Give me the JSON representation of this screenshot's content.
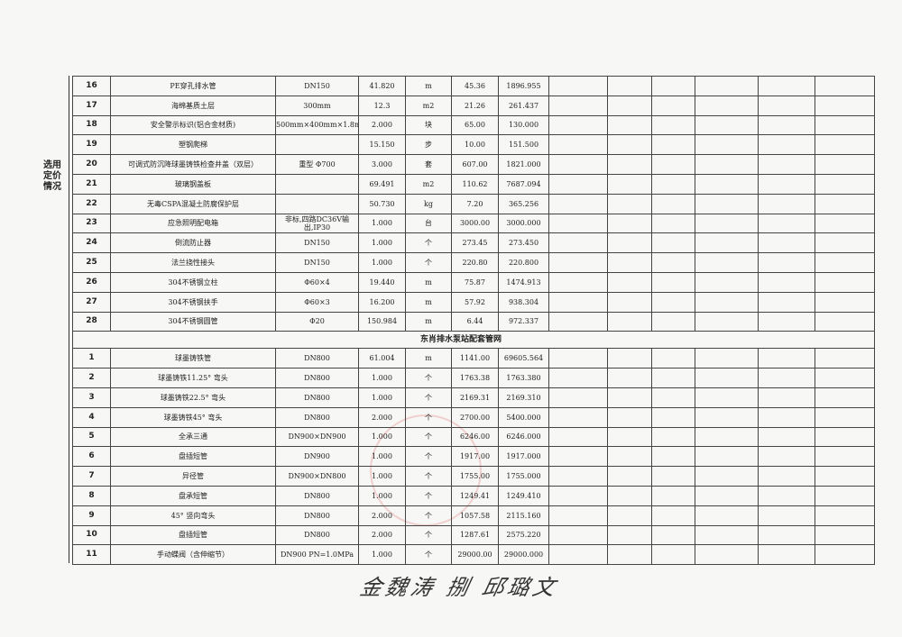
{
  "side_label": "选用定价情况",
  "rows_a": [
    [
      "16",
      "PE穿孔排水管",
      "DN150",
      "41.820",
      "m",
      "45.36",
      "1896.955"
    ],
    [
      "17",
      "海绵基质土层",
      "300mm",
      "12.3",
      "m2",
      "21.26",
      "261.437"
    ],
    [
      "18",
      "安全警示标识(铝合金材质)",
      "500mm×400mm×1.8mm",
      "2.000",
      "块",
      "65.00",
      "130.000"
    ],
    [
      "19",
      "塑钢爬梯",
      "",
      "15.150",
      "步",
      "10.00",
      "151.500"
    ],
    [
      "20",
      "可调式防沉降球墨铸铁检查井盖（双层）",
      "重型 Φ700",
      "3.000",
      "套",
      "607.00",
      "1821.000"
    ],
    [
      "21",
      "玻璃钢盖板",
      "",
      "69.491",
      "m2",
      "110.62",
      "7687.094"
    ],
    [
      "22",
      "无毒CSPA混凝土防腐保护层",
      "",
      "50.730",
      "kg",
      "7.20",
      "365.256"
    ],
    [
      "23",
      "应急照明配电箱",
      "非标,四路DC36V输出,IP30",
      "1.000",
      "台",
      "3000.00",
      "3000.000"
    ],
    [
      "24",
      "倒流防止器",
      "DN150",
      "1.000",
      "个",
      "273.45",
      "273.450"
    ],
    [
      "25",
      "法兰挠性接头",
      "DN150",
      "1.000",
      "个",
      "220.80",
      "220.800"
    ],
    [
      "26",
      "304不锈钢立柱",
      "Φ60×4",
      "19.440",
      "m",
      "75.87",
      "1474.913"
    ],
    [
      "27",
      "304不锈钢扶手",
      "Φ60×3",
      "16.200",
      "m",
      "57.92",
      "938.304"
    ],
    [
      "28",
      "304不锈钢圆管",
      "Φ20",
      "150.984",
      "m",
      "6.44",
      "972.337"
    ]
  ],
  "section_title": "东肖排水泵站配套管网",
  "rows_b": [
    [
      "1",
      "球墨铸铁管",
      "DN800",
      "61.004",
      "m",
      "1141.00",
      "69605.564"
    ],
    [
      "2",
      "球墨铸铁11.25° 弯头",
      "DN800",
      "1.000",
      "个",
      "1763.38",
      "1763.380"
    ],
    [
      "3",
      "球墨铸铁22.5° 弯头",
      "DN800",
      "1.000",
      "个",
      "2169.31",
      "2169.310"
    ],
    [
      "4",
      "球墨铸铁45° 弯头",
      "DN800",
      "2.000",
      "个",
      "2700.00",
      "5400.000"
    ],
    [
      "5",
      "全承三通",
      "DN900×DN900",
      "1.000",
      "个",
      "6246.00",
      "6246.000"
    ],
    [
      "6",
      "盘插短管",
      "DN900",
      "1.000",
      "个",
      "1917.00",
      "1917.000"
    ],
    [
      "7",
      "异径管",
      "DN900×DN800",
      "1.000",
      "个",
      "1755.00",
      "1755.000"
    ],
    [
      "8",
      "盘承短管",
      "DN800",
      "1.000",
      "个",
      "1249.41",
      "1249.410"
    ],
    [
      "9",
      "45° 竖向弯头",
      "DN800",
      "2.000",
      "个",
      "1057.58",
      "2115.160"
    ],
    [
      "10",
      "盘插短管",
      "DN800",
      "2.000",
      "个",
      "1287.61",
      "2575.220"
    ],
    [
      "11",
      "手动蝶阀（含伸缩节）",
      "DN900 PN=1.0MPa",
      "1.000",
      "个",
      "29000.00",
      "29000.000"
    ]
  ],
  "signature": "金魏涛 捌 邱璐文"
}
